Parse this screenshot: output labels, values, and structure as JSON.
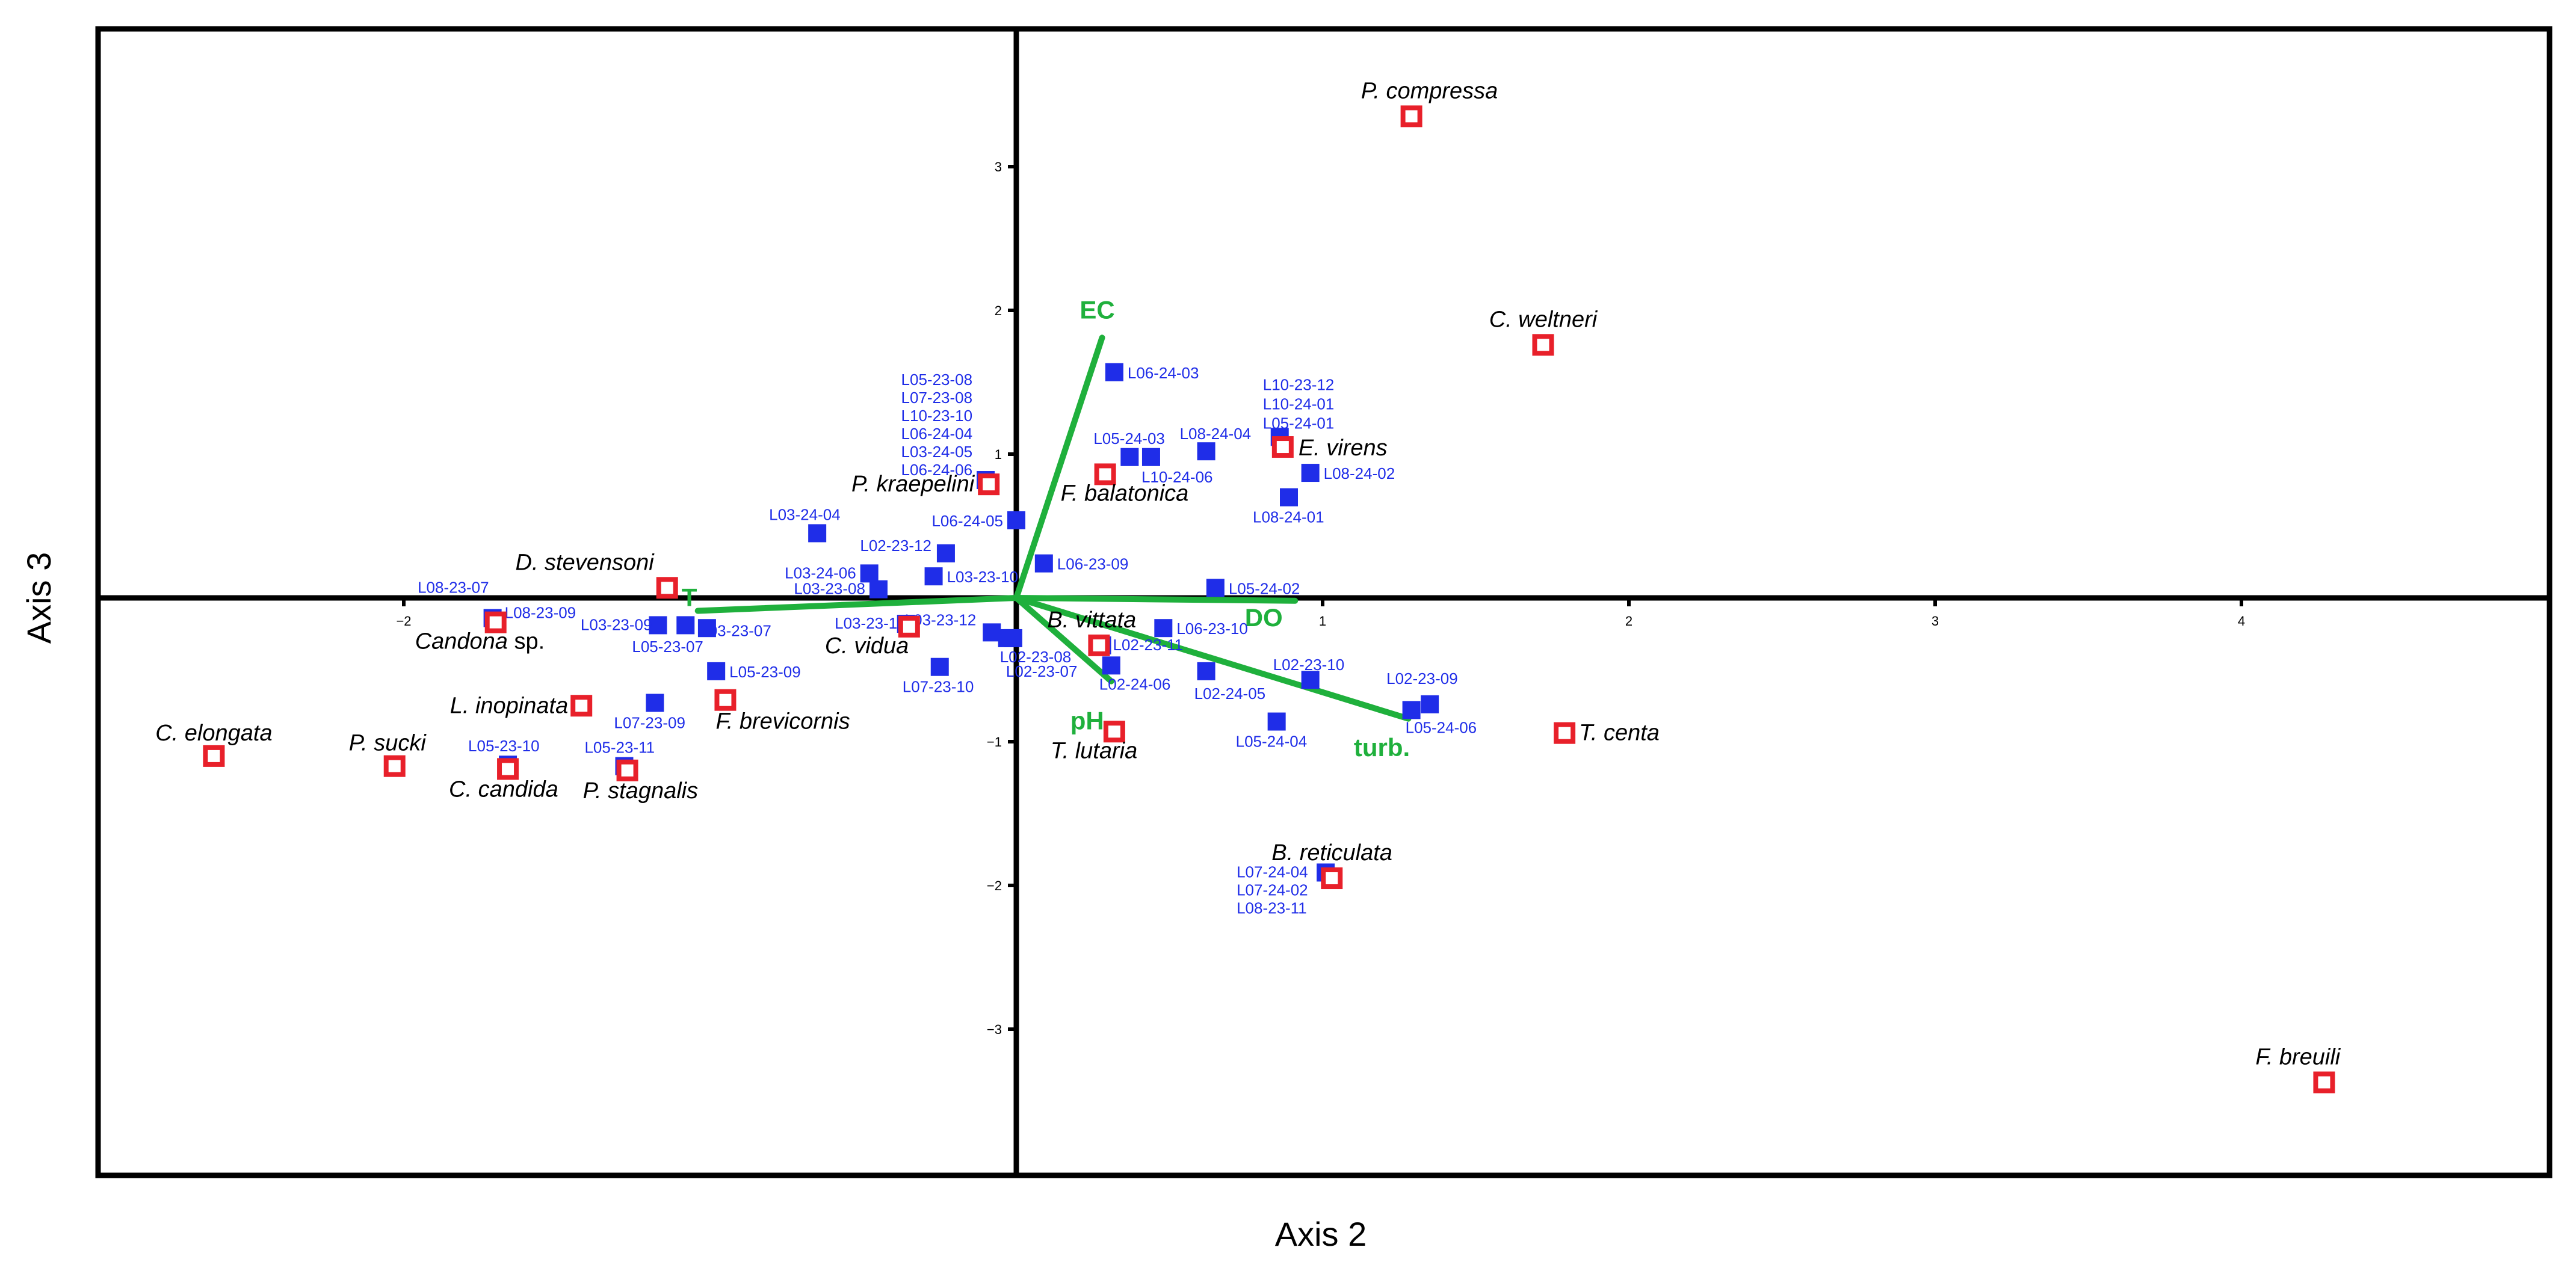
{
  "chart_data": {
    "type": "scatter",
    "xlabel": "Axis 2",
    "ylabel": "Axis 3",
    "xlim": [
      -3.0,
      5.0
    ],
    "ylim": [
      -4.0,
      4.0
    ],
    "x_ticks": [
      -2,
      1,
      2,
      3,
      4
    ],
    "y_ticks": [
      3,
      2,
      1,
      -1,
      -2,
      -3
    ],
    "grid": false,
    "colors": {
      "sample_marker": "#1f2de8",
      "species_marker": "#e8202a",
      "env_vector": "#1fb03c",
      "axis": "#000000"
    },
    "env_vectors": [
      {
        "label": "EC",
        "x": 0.28,
        "y": 1.81
      },
      {
        "label": "T",
        "x": -1.04,
        "y": -0.09
      },
      {
        "label": "DO",
        "x": 0.91,
        "y": -0.02
      },
      {
        "label": "pH",
        "x": 0.31,
        "y": -0.58
      },
      {
        "label": "turb.",
        "x": 1.28,
        "y": -0.84
      }
    ],
    "species": [
      {
        "name": "P. compressa",
        "x": 1.29,
        "y": 3.35
      },
      {
        "name": "C. weltneri",
        "x": 1.72,
        "y": 1.76
      },
      {
        "name": "E. virens",
        "x": 0.87,
        "y": 1.05
      },
      {
        "name": "F. balatonica",
        "x": 0.29,
        "y": 0.86
      },
      {
        "name": "P. kraepelini",
        "x": -0.09,
        "y": 0.79
      },
      {
        "name": "D. stevensoni",
        "x": -1.14,
        "y": 0.07
      },
      {
        "name": "Candona sp.",
        "x": -1.7,
        "y": -0.17
      },
      {
        "name": "B. vittata",
        "x": 0.27,
        "y": -0.33
      },
      {
        "name": "C. vidua",
        "x": -0.35,
        "y": -0.2
      },
      {
        "name": "L. inopinata",
        "x": -1.42,
        "y": -0.75
      },
      {
        "name": "F. brevicornis",
        "x": -0.95,
        "y": -0.71
      },
      {
        "name": "T. lutaria",
        "x": 0.32,
        "y": -0.93
      },
      {
        "name": "T. centa",
        "x": 1.79,
        "y": -0.94
      },
      {
        "name": "C. elongata",
        "x": -2.62,
        "y": -1.1
      },
      {
        "name": "P. sucki",
        "x": -2.03,
        "y": -1.17
      },
      {
        "name": "C. candida",
        "x": -1.66,
        "y": -1.19
      },
      {
        "name": "P. stagnalis",
        "x": -1.27,
        "y": -1.2
      },
      {
        "name": "B. reticulata",
        "x": 1.03,
        "y": -1.95
      },
      {
        "name": "F. breuili",
        "x": 4.27,
        "y": -3.37
      }
    ],
    "samples": [
      {
        "name": "L06-24-03",
        "x": 0.32,
        "y": 1.57
      },
      {
        "name": "L10-23-12",
        "x": 0.86,
        "y": 1.12
      },
      {
        "name": "L10-24-01",
        "x": 0.86,
        "y": 1.12
      },
      {
        "name": "L05-24-01",
        "x": 0.86,
        "y": 1.12
      },
      {
        "name": "L08-24-04",
        "x": 0.62,
        "y": 1.02
      },
      {
        "name": "L05-24-03",
        "x": 0.37,
        "y": 0.98
      },
      {
        "name": "L10-24-06",
        "x": 0.44,
        "y": 0.98
      },
      {
        "name": "L08-24-02",
        "x": 0.96,
        "y": 0.87
      },
      {
        "name": "L08-24-01",
        "x": 0.89,
        "y": 0.7
      },
      {
        "name": "L05-23-08",
        "x": -0.1,
        "y": 0.82
      },
      {
        "name": "L07-23-08",
        "x": -0.1,
        "y": 0.82
      },
      {
        "name": "L10-23-10",
        "x": -0.1,
        "y": 0.82
      },
      {
        "name": "L06-24-04",
        "x": -0.1,
        "y": 0.82
      },
      {
        "name": "L03-24-05",
        "x": -0.1,
        "y": 0.82
      },
      {
        "name": "L06-24-06",
        "x": -0.1,
        "y": 0.82
      },
      {
        "name": "L06-24-05",
        "x": 0.0,
        "y": 0.54
      },
      {
        "name": "L03-24-04",
        "x": -0.65,
        "y": 0.45
      },
      {
        "name": "L02-23-12",
        "x": -0.23,
        "y": 0.31
      },
      {
        "name": "L03-23-10",
        "x": -0.27,
        "y": 0.15
      },
      {
        "name": "L03-24-06",
        "x": -0.48,
        "y": 0.17
      },
      {
        "name": "L03-23-08",
        "x": -0.45,
        "y": 0.06
      },
      {
        "name": "L06-23-09",
        "x": 0.09,
        "y": 0.24
      },
      {
        "name": "L05-24-02",
        "x": 0.65,
        "y": 0.07
      },
      {
        "name": "L08-23-07",
        "x": -1.71,
        "y": -0.14
      },
      {
        "name": "L08-23-09",
        "x": -1.71,
        "y": -0.14
      },
      {
        "name": "L03-23-09",
        "x": -1.17,
        "y": -0.19
      },
      {
        "name": "L03-23-07",
        "x": -1.08,
        "y": -0.19
      },
      {
        "name": "L05-23-07",
        "x": -1.01,
        "y": -0.21
      },
      {
        "name": "L03-23-11",
        "x": -0.36,
        "y": -0.18
      },
      {
        "name": "L03-23-12",
        "x": -0.08,
        "y": -0.24
      },
      {
        "name": "L02-23-08",
        "x": -0.03,
        "y": -0.28
      },
      {
        "name": "L02-23-07",
        "x": -0.01,
        "y": -0.28
      },
      {
        "name": "L06-23-10",
        "x": 0.48,
        "y": -0.21
      },
      {
        "name": "L02-23-11",
        "x": 0.28,
        "y": -0.33
      },
      {
        "name": "L02-24-06",
        "x": 0.31,
        "y": -0.47
      },
      {
        "name": "L05-23-09",
        "x": -0.98,
        "y": -0.51
      },
      {
        "name": "L07-23-10",
        "x": -0.25,
        "y": -0.48
      },
      {
        "name": "L02-23-10",
        "x": 0.96,
        "y": -0.57
      },
      {
        "name": "L02-24-05",
        "x": 0.62,
        "y": -0.51
      },
      {
        "name": "L02-23-09",
        "x": 1.35,
        "y": -0.74
      },
      {
        "name": "L05-24-06",
        "x": 1.29,
        "y": -0.78
      },
      {
        "name": "L05-24-04",
        "x": 0.85,
        "y": -0.86
      },
      {
        "name": "L07-23-09",
        "x": -1.18,
        "y": -0.73
      },
      {
        "name": "L05-23-10",
        "x": -1.66,
        "y": -1.16
      },
      {
        "name": "L05-23-11",
        "x": -1.28,
        "y": -1.17
      },
      {
        "name": "L07-24-04",
        "x": 1.01,
        "y": -1.91
      },
      {
        "name": "L07-24-02",
        "x": 1.01,
        "y": -1.91
      },
      {
        "name": "L08-23-11",
        "x": 1.01,
        "y": -1.91
      }
    ]
  }
}
